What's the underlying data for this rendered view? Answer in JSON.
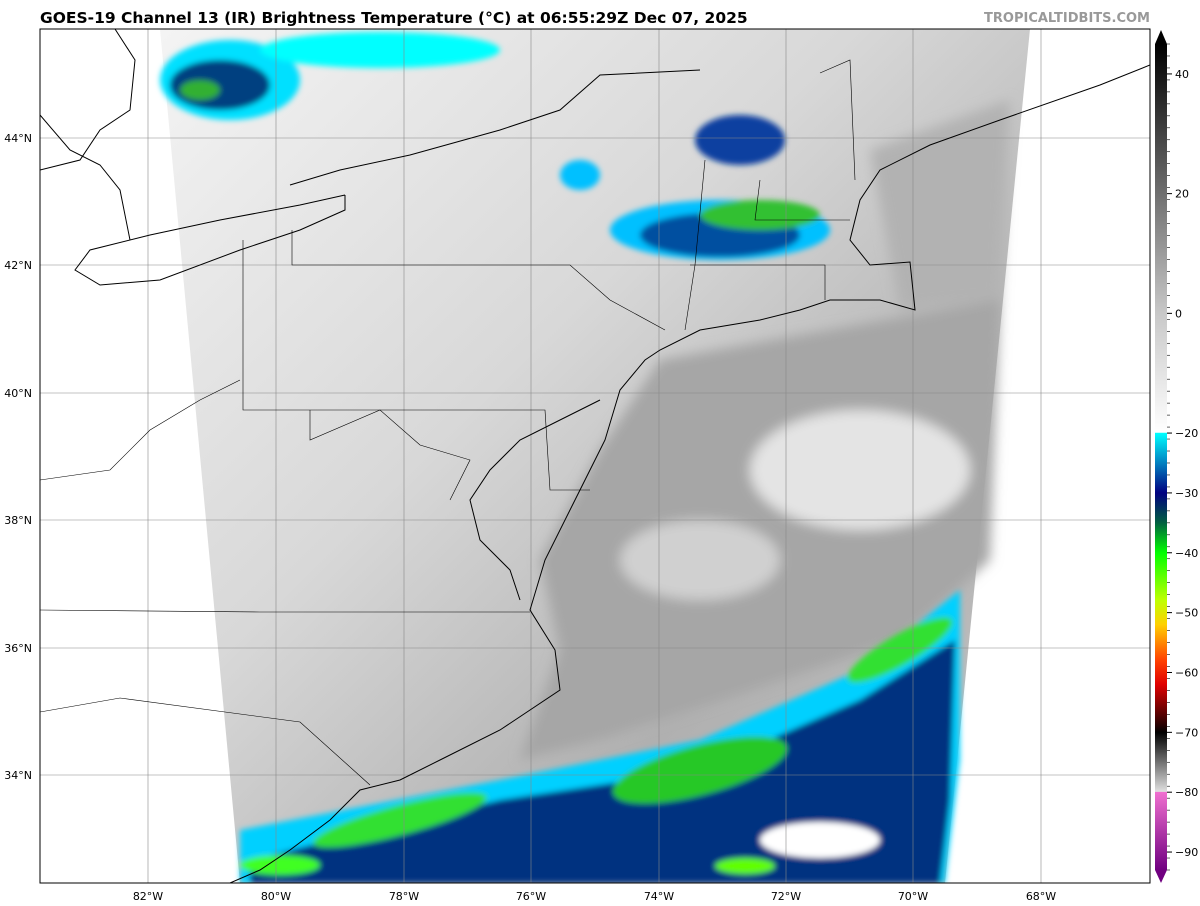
{
  "title": "GOES-19 Channel 13 (IR) Brightness Temperature (°C) at 06:55:29Z Dec 07, 2025",
  "brand": "TROPICALTIDBITS.COM",
  "lon_labels": [
    "82°W",
    "80°W",
    "78°W",
    "76°W",
    "74°W",
    "72°W",
    "70°W",
    "68°W"
  ],
  "lat_labels": [
    "44°N",
    "42°N",
    "40°N",
    "38°N",
    "36°N",
    "34°N"
  ],
  "colorbar": {
    "ticks": [
      "40",
      "20",
      "0",
      "−20",
      "−30",
      "−40",
      "−50",
      "−60",
      "−70",
      "−80",
      "−90"
    ],
    "tick_values": [
      40,
      20,
      0,
      -20,
      -30,
      -40,
      -50,
      -60,
      -70,
      -80,
      -90
    ],
    "range": [
      -93,
      45
    ],
    "stops": [
      {
        "v": 45,
        "c": "#000000"
      },
      {
        "v": 0,
        "c": "#c8c8c8"
      },
      {
        "v": -19.9,
        "c": "#ffffff"
      },
      {
        "v": -20,
        "c": "#00ffff"
      },
      {
        "v": -25,
        "c": "#0080c0"
      },
      {
        "v": -30,
        "c": "#000080"
      },
      {
        "v": -35,
        "c": "#006040"
      },
      {
        "v": -40,
        "c": "#00ff00"
      },
      {
        "v": -48,
        "c": "#c0ff00"
      },
      {
        "v": -52,
        "c": "#ffd000"
      },
      {
        "v": -58,
        "c": "#ff4000"
      },
      {
        "v": -62,
        "c": "#e00000"
      },
      {
        "v": -69,
        "c": "#200000"
      },
      {
        "v": -70,
        "c": "#000000"
      },
      {
        "v": -79.9,
        "c": "#e0e0e0"
      },
      {
        "v": -80,
        "c": "#f070d0"
      },
      {
        "v": -93,
        "c": "#700080"
      }
    ]
  }
}
